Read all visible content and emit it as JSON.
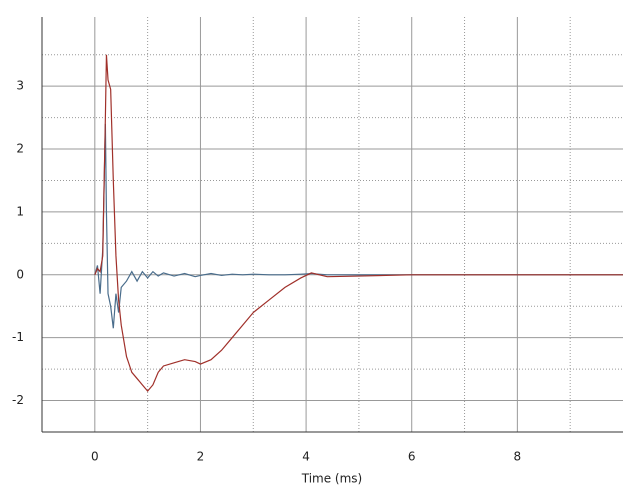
{
  "chart_data": {
    "type": "line",
    "x_label": "Time (ms)",
    "x": [
      0,
      0.05,
      0.1,
      0.15,
      0.2,
      0.22,
      0.25,
      0.3,
      0.35,
      0.4,
      0.45,
      0.5,
      0.6,
      0.7,
      0.8,
      0.9,
      1.0,
      1.1,
      1.2,
      1.3,
      1.5,
      1.7,
      1.9,
      2.0,
      2.2,
      2.4,
      2.6,
      2.8,
      3.0,
      3.3,
      3.6,
      3.9,
      4.1,
      4.4,
      5.0,
      6.0,
      8.0,
      10.0
    ],
    "series": [
      {
        "color": "#a0302a",
        "values": [
          0,
          0.1,
          0.05,
          0.3,
          2.5,
          3.5,
          3.1,
          2.95,
          1.5,
          0.3,
          -0.4,
          -0.8,
          -1.3,
          -1.55,
          -1.65,
          -1.75,
          -1.85,
          -1.75,
          -1.55,
          -1.45,
          -1.4,
          -1.35,
          -1.38,
          -1.42,
          -1.35,
          -1.2,
          -1.0,
          -0.8,
          -0.6,
          -0.4,
          -0.2,
          -0.05,
          0.03,
          -0.03,
          -0.02,
          0,
          0,
          0
        ]
      },
      {
        "color": "#4a6d8c",
        "values": [
          0,
          0.15,
          -0.3,
          0.4,
          2.4,
          1.0,
          -0.3,
          -0.5,
          -0.85,
          -0.3,
          -0.6,
          -0.2,
          -0.1,
          0.05,
          -0.1,
          0.05,
          -0.05,
          0.05,
          -0.02,
          0.03,
          -0.02,
          0.02,
          -0.03,
          -0.01,
          0.02,
          -0.01,
          0.01,
          0,
          0.01,
          0,
          0,
          0.01,
          0.02,
          0,
          0,
          0,
          0,
          0
        ]
      }
    ],
    "xlim": [
      -1,
      10
    ],
    "xticks": [
      0,
      2,
      4,
      6,
      8
    ],
    "ylim": [
      -2.5,
      4.1
    ],
    "yticks": [
      -2,
      -1,
      0,
      1,
      2,
      3
    ],
    "grid": true,
    "minor_grid": true
  }
}
